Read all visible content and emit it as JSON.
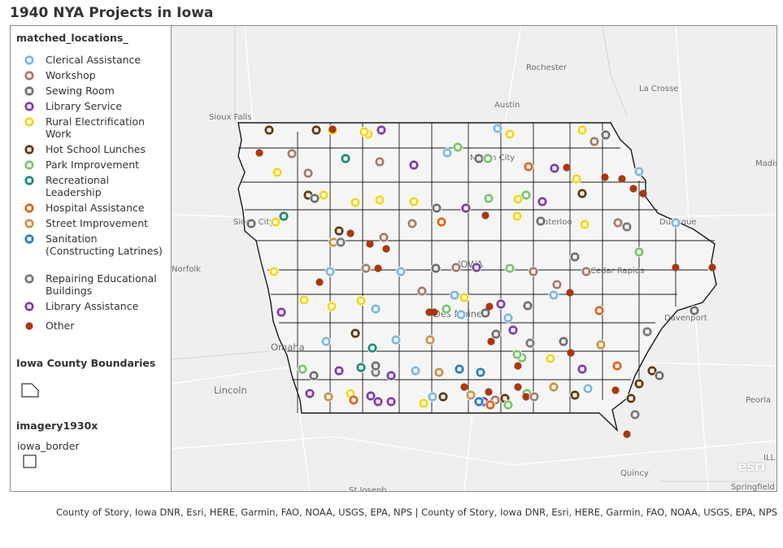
{
  "title": "1940 NYA Projects in Iowa",
  "legend": {
    "layer1_title": "matched_locations_",
    "categories": [
      {
        "label": "Clerical Assistance",
        "icon": "clerical-icon",
        "color": "#7fb6df"
      },
      {
        "label": "Workshop",
        "icon": "workshop-icon",
        "color": "#a57b6c"
      },
      {
        "label": "Sewing Room",
        "icon": "sewing-icon",
        "color": "#707070"
      },
      {
        "label": "Library Service",
        "icon": "library-service-icon",
        "color": "#7c3fa3"
      },
      {
        "label": "Rural Electrification Work",
        "icon": "electrification-icon",
        "color": "#f2d51c"
      },
      {
        "label": "Hot School Lunches",
        "icon": "lunch-icon",
        "color": "#5b3b0f"
      },
      {
        "label": "Park Improvement",
        "icon": "park-icon",
        "color": "#7cc36e"
      },
      {
        "label": "Recreational Leadership",
        "icon": "recreation-icon",
        "color": "#1d8a75"
      },
      {
        "label": "Hospital Assistance",
        "icon": "hospital-icon",
        "color": "#d9651f"
      },
      {
        "label": "Street Improvement",
        "icon": "street-icon",
        "color": "#c8924a"
      },
      {
        "label": "Sanitation (Constructing Latrines)",
        "icon": "sanitation-icon",
        "color": "#2a7bbd"
      },
      {
        "label": "Repairing Educational Buildings",
        "icon": "repair-icon",
        "color": "#7a7a7a"
      },
      {
        "label": "Library Assistance",
        "icon": "library-assistance-icon",
        "color": "#7c3fa3"
      },
      {
        "label": "Other",
        "icon": "other-dot-icon",
        "color": "#a8380f"
      }
    ],
    "layer2_title": "Iowa County Boundaries",
    "layer3_title": "imagery1930x",
    "layer3_sublabel": "iowa_border"
  },
  "map": {
    "place_labels": [
      {
        "text": "Rochester"
      },
      {
        "text": "La Crosse"
      },
      {
        "text": "Austin"
      },
      {
        "text": "Sioux Falls"
      },
      {
        "text": "Mason City"
      },
      {
        "text": "Madis"
      },
      {
        "text": "Sioux City"
      },
      {
        "text": "Waterloo"
      },
      {
        "text": "Dubuque"
      },
      {
        "text": "Norfolk"
      },
      {
        "text": "IOWA"
      },
      {
        "text": "Cedar Rapids"
      },
      {
        "text": "Des Moines"
      },
      {
        "text": "Davenport"
      },
      {
        "text": "Omaha"
      },
      {
        "text": "Lincoln"
      },
      {
        "text": "Peoria"
      },
      {
        "text": "Quincy"
      },
      {
        "text": "St Joseph"
      },
      {
        "text": "Springfield"
      },
      {
        "text": "ILL"
      }
    ],
    "basemap_logo": "esri"
  },
  "attribution": "County of Story, Iowa DNR, Esri, HERE, Garmin, FAO, NOAA, USGS, EPA, NPS | County of Story, Iowa DNR, Esri, HERE, Garmin, FAO, NOAA, USGS, EPA, NPS"
}
